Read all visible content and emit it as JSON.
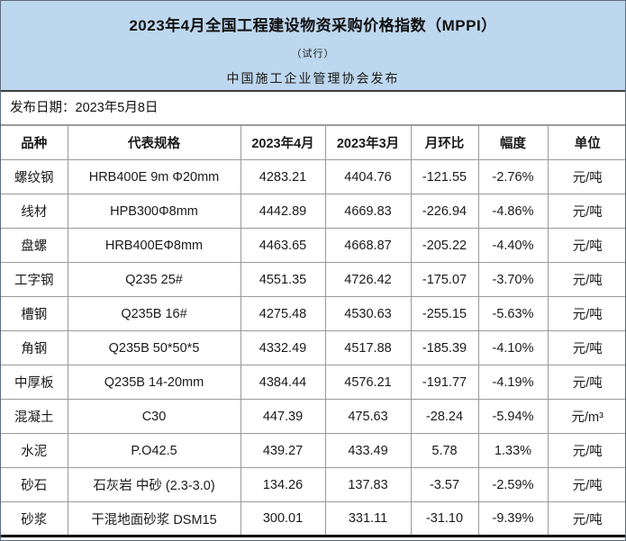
{
  "header": {
    "title": "2023年4月全国工程建设物资采购价格指数（MPPI）",
    "subtitle": "（试行）",
    "publisher": "中国施工企业管理协会发布"
  },
  "release_date": "发布日期：2023年5月8日",
  "colors": {
    "header_bg": "#BDD7EE",
    "down_green": "#2FC56E",
    "up_red": "#FF3232"
  },
  "chart_data": {
    "type": "table",
    "title": "2023年4月全国工程建设物资采购价格指数（MPPI）",
    "columns": [
      "品种",
      "代表规格",
      "2023年4月",
      "2023年3月",
      "月环比",
      "幅度",
      "单位"
    ],
    "rows": [
      {
        "name": "螺纹钢",
        "spec": "HRB400E 9m Φ20mm",
        "apr": "4283.21",
        "mar": "4404.76",
        "change": "-121.55",
        "pct": "-2.76%",
        "unit": "元/吨",
        "trend": "down"
      },
      {
        "name": "线材",
        "spec": "HPB300Φ8mm",
        "apr": "4442.89",
        "mar": "4669.83",
        "change": "-226.94",
        "pct": "-4.86%",
        "unit": "元/吨",
        "trend": "down"
      },
      {
        "name": "盘螺",
        "spec": "HRB400EΦ8mm",
        "apr": "4463.65",
        "mar": "4668.87",
        "change": "-205.22",
        "pct": "-4.40%",
        "unit": "元/吨",
        "trend": "down"
      },
      {
        "name": "工字钢",
        "spec": "Q235 25#",
        "apr": "4551.35",
        "mar": "4726.42",
        "change": "-175.07",
        "pct": "-3.70%",
        "unit": "元/吨",
        "trend": "down"
      },
      {
        "name": "槽钢",
        "spec": "Q235B 16#",
        "apr": "4275.48",
        "mar": "4530.63",
        "change": "-255.15",
        "pct": "-5.63%",
        "unit": "元/吨",
        "trend": "down"
      },
      {
        "name": "角钢",
        "spec": "Q235B 50*50*5",
        "apr": "4332.49",
        "mar": "4517.88",
        "change": "-185.39",
        "pct": "-4.10%",
        "unit": "元/吨",
        "trend": "down"
      },
      {
        "name": "中厚板",
        "spec": "Q235B 14-20mm",
        "apr": "4384.44",
        "mar": "4576.21",
        "change": "-191.77",
        "pct": "-4.19%",
        "unit": "元/吨",
        "trend": "down"
      },
      {
        "name": "混凝土",
        "spec": "C30",
        "apr": "447.39",
        "mar": "475.63",
        "change": "-28.24",
        "pct": "-5.94%",
        "unit": "元/m³",
        "trend": "down"
      },
      {
        "name": "水泥",
        "spec": "P.O42.5",
        "apr": "439.27",
        "mar": "433.49",
        "change": "5.78",
        "pct": "1.33%",
        "unit": "元/吨",
        "trend": "up"
      },
      {
        "name": "砂石",
        "spec": "石灰岩 中砂 (2.3-3.0)",
        "apr": "134.26",
        "mar": "137.83",
        "change": "-3.57",
        "pct": "-2.59%",
        "unit": "元/吨",
        "trend": "down"
      },
      {
        "name": "砂浆",
        "spec": "干混地面砂浆 DSM15",
        "apr": "300.01",
        "mar": "331.11",
        "change": "-31.10",
        "pct": "-9.39%",
        "unit": "元/吨",
        "trend": "down"
      }
    ]
  }
}
